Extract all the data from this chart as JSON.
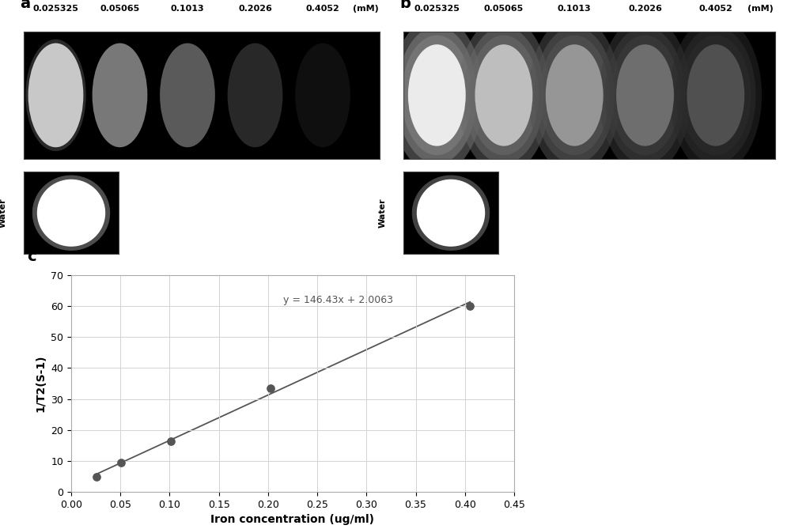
{
  "concentrations": [
    "0.025325",
    "0.05065",
    "0.1013",
    "0.2026",
    "0.4052",
    "(mM)"
  ],
  "panel_a_brightnesses": [
    200,
    120,
    90,
    40,
    15
  ],
  "panel_b_brightnesses": [
    235,
    190,
    150,
    110,
    80
  ],
  "scatter_x": [
    0.025325,
    0.05065,
    0.1013,
    0.2026,
    0.4052
  ],
  "scatter_y": [
    5.0,
    9.5,
    16.5,
    33.5,
    60.0
  ],
  "line_x": [
    0.025325,
    0.4052
  ],
  "line_equation": "y = 146.43x + 2.0063",
  "xlabel": "Iron concentration (ug/ml)",
  "ylabel": "1/T2(S-1)",
  "xlim": [
    0,
    0.45
  ],
  "ylim": [
    0,
    70
  ],
  "xticks": [
    0,
    0.05,
    0.1,
    0.15,
    0.2,
    0.25,
    0.3,
    0.35,
    0.4,
    0.45
  ],
  "yticks": [
    0,
    10,
    20,
    30,
    40,
    50,
    60,
    70
  ],
  "label_a": "a",
  "label_b": "b",
  "label_c": "c",
  "water_label": "Water",
  "marker_color": "#555555",
  "line_color": "#555555",
  "eq_text_color": "#555555",
  "slope": 146.43,
  "intercept": 2.0063
}
